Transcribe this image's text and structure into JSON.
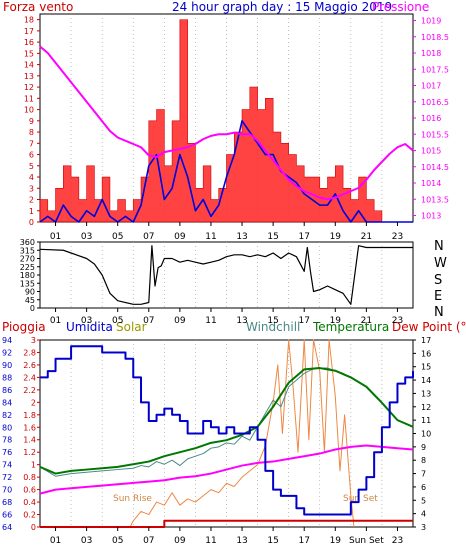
{
  "chart_data": [
    {
      "type": "line",
      "title": "24 hour graph day : 15 Maggio 2019",
      "left_label": "Forza vento",
      "right_label": "Pressione",
      "x_ticks": [
        "01",
        "03",
        "05",
        "07",
        "09",
        "11",
        "13",
        "15",
        "17",
        "19",
        "21",
        "23"
      ],
      "y_left_ticks": [
        "0",
        "1",
        "2",
        "3",
        "4",
        "5",
        "6",
        "7",
        "8",
        "9",
        "10",
        "11",
        "12",
        "13",
        "14",
        "15",
        "16",
        "17",
        "18"
      ],
      "y_right_ticks": [
        "1013",
        "1013.5",
        "1014",
        "1014.5",
        "1015",
        "1015.5",
        "1016",
        "1016.5",
        "1017",
        "1017.5",
        "1018",
        "1018.5",
        "1019"
      ],
      "xlim": [
        0,
        24
      ],
      "ylim_left": [
        0,
        18.5
      ],
      "ylim_right": [
        1012.8,
        1019.2
      ],
      "series": [
        {
          "name": "Pressione",
          "color": "#ff00ff",
          "x": [
            0,
            0.5,
            1,
            1.5,
            2,
            2.5,
            3,
            3.5,
            4,
            4.5,
            5,
            5.5,
            6,
            6.5,
            7,
            7.5,
            8,
            8.5,
            9,
            9.5,
            10,
            10.5,
            11,
            11.5,
            12,
            12.5,
            13,
            13.5,
            14,
            14.5,
            15,
            15.5,
            16,
            16.5,
            17,
            17.5,
            18,
            18.5,
            19,
            19.5,
            20,
            20.5,
            21,
            21.5,
            22,
            22.5,
            23,
            23.5,
            24
          ],
          "values": [
            1018.2,
            1018.0,
            1017.7,
            1017.4,
            1017.1,
            1016.8,
            1016.5,
            1016.2,
            1015.9,
            1015.6,
            1015.4,
            1015.3,
            1015.2,
            1015.1,
            1014.85,
            1014.8,
            1014.95,
            1015.0,
            1015.05,
            1015.1,
            1015.2,
            1015.35,
            1015.45,
            1015.5,
            1015.5,
            1015.55,
            1015.5,
            1015.5,
            1015.3,
            1015.0,
            1014.7,
            1014.4,
            1014.1,
            1013.9,
            1013.75,
            1013.65,
            1013.55,
            1013.5,
            1013.55,
            1013.65,
            1013.75,
            1013.85,
            1014.1,
            1014.4,
            1014.65,
            1014.9,
            1015.1,
            1015.2,
            1015.0
          ]
        },
        {
          "name": "wind average (blue)",
          "color": "#0000dd",
          "x": [
            0,
            0.5,
            1,
            1.5,
            2,
            2.5,
            3,
            3.5,
            4,
            4.5,
            5,
            5.5,
            6,
            6.5,
            7,
            7.5,
            8,
            8.5,
            9,
            9.5,
            10,
            10.5,
            11,
            11.5,
            12,
            12.5,
            13,
            13.5,
            14,
            14.5,
            15,
            15.5,
            16,
            16.5,
            17,
            17.5,
            18,
            18.5,
            19,
            19.5,
            20,
            20.5,
            21,
            21.5,
            22,
            22.5,
            23,
            23.5,
            24
          ],
          "values": [
            0,
            0.5,
            0,
            1.5,
            0.5,
            0,
            1,
            0.5,
            2,
            0.5,
            0,
            0.5,
            0,
            1.5,
            5,
            6,
            2,
            3,
            6,
            4,
            1,
            2,
            0.5,
            1.5,
            4,
            6,
            9,
            8,
            7,
            6,
            6,
            4.5,
            4,
            3.5,
            2.5,
            2,
            1.5,
            1.5,
            2.5,
            1,
            0,
            1,
            0,
            0,
            0,
            0,
            0,
            0,
            0
          ]
        },
        {
          "name": "wind gust (red)",
          "color": "#ff0000",
          "x": [
            0,
            0.5,
            1,
            1.5,
            2,
            2.5,
            3,
            3.5,
            4,
            4.5,
            5,
            5.5,
            6,
            6.5,
            7,
            7.5,
            8,
            8.5,
            9,
            9.5,
            10,
            10.5,
            11,
            11.5,
            12,
            12.5,
            13,
            13.5,
            14,
            14.5,
            15,
            15.5,
            16,
            16.5,
            17,
            17.5,
            18,
            18.5,
            19,
            19.5,
            20,
            20.5,
            21,
            21.5,
            22,
            22.5,
            23,
            23.5,
            24
          ],
          "values": [
            2,
            1,
            3,
            5,
            4,
            2,
            5,
            2,
            4,
            1,
            2,
            1,
            2,
            4,
            9,
            10,
            5,
            9,
            18,
            7,
            3,
            5,
            2,
            3,
            6,
            8,
            10,
            12,
            10,
            11,
            8,
            7,
            6,
            5,
            4,
            4,
            3,
            4,
            5,
            3,
            2,
            4,
            2,
            1,
            0,
            0,
            0,
            0,
            0
          ]
        }
      ]
    },
    {
      "type": "line",
      "left_label": "",
      "right_labels": [
        "N",
        "W",
        "S",
        "E",
        "N"
      ],
      "x_ticks": [
        "01",
        "03",
        "05",
        "07",
        "09",
        "11",
        "13",
        "15",
        "17",
        "19",
        "21",
        "23"
      ],
      "y_ticks": [
        "0",
        "45",
        "90",
        "135",
        "180",
        "225",
        "270",
        "315",
        "360"
      ],
      "xlim": [
        0,
        24
      ],
      "ylim": [
        0,
        360
      ],
      "series": [
        {
          "name": "Direzione vento",
          "color": "#000000",
          "x": [
            0,
            1.5,
            2,
            3,
            3.5,
            4,
            4.5,
            5,
            6,
            6.5,
            7,
            7.2,
            7.4,
            7.6,
            7.8,
            8,
            8.5,
            9,
            9.5,
            10,
            10.5,
            11,
            11.5,
            12,
            12.5,
            13,
            13.5,
            14,
            14.5,
            15,
            15.5,
            16,
            16.5,
            17,
            17.2,
            17.4,
            17.6,
            18,
            18.5,
            19,
            19.5,
            20,
            20.5,
            21,
            22,
            23,
            24
          ],
          "values": [
            320,
            315,
            300,
            270,
            240,
            180,
            80,
            40,
            20,
            20,
            30,
            340,
            120,
            220,
            230,
            270,
            270,
            250,
            260,
            250,
            240,
            250,
            260,
            280,
            290,
            290,
            280,
            290,
            280,
            300,
            270,
            300,
            280,
            200,
            330,
            200,
            90,
            100,
            120,
            100,
            80,
            20,
            340,
            330,
            330,
            330,
            330
          ]
        }
      ]
    },
    {
      "type": "line",
      "labels": {
        "pioggia": "Pioggia",
        "umidita": "Umidita",
        "solar": "Solar",
        "windchill": "Windchill",
        "temperatura": "Temperatura",
        "dew_point": "Dew Point (°C)"
      },
      "annotations": [
        "Sun Rise",
        "Sun Set"
      ],
      "x_ticks": [
        "01",
        "03",
        "05",
        "07",
        "09",
        "11",
        "13",
        "15",
        "17",
        "19",
        "Sun Set",
        "23"
      ],
      "y_humidity_ticks": [
        "64",
        "66",
        "68",
        "70",
        "72",
        "74",
        "76",
        "78",
        "80",
        "82",
        "84",
        "86",
        "88",
        "90",
        "92",
        "94"
      ],
      "y_rain_ticks": [
        "0",
        "0.2",
        "0.4",
        "0.6",
        "0.8",
        "1",
        "1.2",
        "1.4",
        "1.6",
        "1.8",
        "2",
        "2.2",
        "2.4",
        "2.6",
        "2.8",
        "3"
      ],
      "y_temp_ticks": [
        "3",
        "4",
        "5",
        "6",
        "7",
        "8",
        "9",
        "10",
        "11",
        "12",
        "13",
        "14",
        "15",
        "16",
        "17"
      ],
      "xlim": [
        0,
        24
      ],
      "ylim_humidity": [
        64,
        94
      ],
      "ylim_rain": [
        0,
        3
      ],
      "ylim_temperature": [
        3,
        17
      ],
      "series": [
        {
          "name": "Umidita",
          "color": "#0000cc",
          "x": [
            0,
            0.5,
            1,
            2,
            3,
            4,
            5,
            5.5,
            6,
            6.5,
            7,
            7.5,
            8,
            8.5,
            9,
            9.5,
            10,
            10.5,
            11,
            11.5,
            12,
            12.5,
            13,
            13.5,
            14,
            14.5,
            15,
            15.5,
            16,
            16.5,
            17,
            17.5,
            18,
            18.5,
            19,
            19.5,
            20,
            20.5,
            21,
            21.5,
            22,
            22.5,
            23,
            23.5,
            24
          ],
          "values": [
            88,
            89,
            91,
            93,
            93,
            92,
            92,
            91,
            88,
            84,
            81,
            82,
            83,
            82,
            81,
            79,
            79,
            81,
            80,
            79,
            80,
            79,
            79,
            80,
            78,
            73,
            70,
            69,
            69,
            67,
            66,
            66,
            66,
            66,
            66,
            66,
            68,
            70,
            72,
            76,
            80,
            84,
            87,
            88,
            89
          ]
        },
        {
          "name": "Temperatura",
          "color": "#007700",
          "x": [
            0,
            1,
            2,
            3,
            4,
            5,
            6,
            7,
            8,
            9,
            10,
            11,
            12,
            13,
            14,
            15,
            16,
            17,
            18,
            19,
            20,
            21,
            22,
            23,
            24
          ],
          "values": [
            7.5,
            7.0,
            7.2,
            7.3,
            7.4,
            7.5,
            7.7,
            7.9,
            8.3,
            8.6,
            8.9,
            9.3,
            9.5,
            9.9,
            10.5,
            12.0,
            13.8,
            14.8,
            14.9,
            14.7,
            14.2,
            13.5,
            12.3,
            11.0,
            10.5
          ]
        },
        {
          "name": "Windchill",
          "color": "#4a8a84",
          "x": [
            0,
            1,
            2,
            3,
            4,
            5,
            6,
            6.5,
            7,
            7.5,
            8,
            8.5,
            9,
            9.5,
            10,
            10.5,
            11,
            11.5,
            12,
            12.5,
            13,
            13.5,
            14,
            14.5,
            15,
            15.5,
            16,
            16.5,
            17,
            17.5,
            18,
            18.5,
            19,
            19.5,
            20,
            21,
            22,
            23,
            24
          ],
          "values": [
            7.5,
            6.8,
            7.0,
            7.1,
            7.2,
            7.3,
            7.4,
            7.6,
            7.5,
            7.9,
            7.7,
            8.0,
            7.6,
            8.1,
            8.3,
            8.5,
            8.9,
            9.0,
            9.3,
            9.2,
            9.8,
            9.5,
            10.5,
            11.5,
            12.5,
            12.0,
            13.5,
            14.0,
            14.5,
            14.8,
            14.9,
            14.9,
            14.7,
            14.5,
            14.2,
            13.5,
            12.3,
            11.0,
            10.5
          ]
        },
        {
          "name": "Dew Point (°C)",
          "color": "#ff00ff",
          "x": [
            0,
            1,
            2,
            3,
            4,
            5,
            6,
            7,
            8,
            9,
            10,
            11,
            12,
            13,
            14,
            15,
            16,
            17,
            18,
            19,
            20,
            21,
            22,
            23,
            24
          ],
          "values": [
            5.5,
            5.8,
            5.9,
            6.0,
            6.1,
            6.2,
            6.3,
            6.4,
            6.5,
            6.7,
            6.8,
            7.0,
            7.3,
            7.6,
            7.8,
            7.9,
            8.1,
            8.3,
            8.5,
            8.8,
            9.0,
            9.1,
            9.0,
            8.9,
            8.8
          ]
        },
        {
          "name": "Solar",
          "color": "#ee8844",
          "x": [
            5.8,
            6,
            6.5,
            7,
            7.5,
            8,
            8.5,
            9,
            9.5,
            10,
            10.5,
            11,
            11.5,
            12,
            12.5,
            13,
            13.5,
            14,
            14.5,
            15,
            15.3,
            15.6,
            16,
            16.3,
            16.6,
            17,
            17.3,
            17.6,
            18,
            18.3,
            18.6,
            19,
            19.3,
            19.6,
            20,
            20.2
          ],
          "values": [
            0,
            0.1,
            0.25,
            0.2,
            0.4,
            0.35,
            0.55,
            0.35,
            0.45,
            0.4,
            0.5,
            0.6,
            0.55,
            0.7,
            0.65,
            0.8,
            0.9,
            1.0,
            1.3,
            2.0,
            2.6,
            1.5,
            3.0,
            2.2,
            1.2,
            3.0,
            1.4,
            3.0,
            2.5,
            1.2,
            3.0,
            2.1,
            0.9,
            1.8,
            0.5,
            0
          ]
        },
        {
          "name": "Pioggia",
          "color": "#cc0000",
          "x": [
            0,
            7.9,
            8,
            24
          ],
          "values": [
            0,
            0,
            0.1,
            0.1
          ]
        }
      ]
    }
  ]
}
